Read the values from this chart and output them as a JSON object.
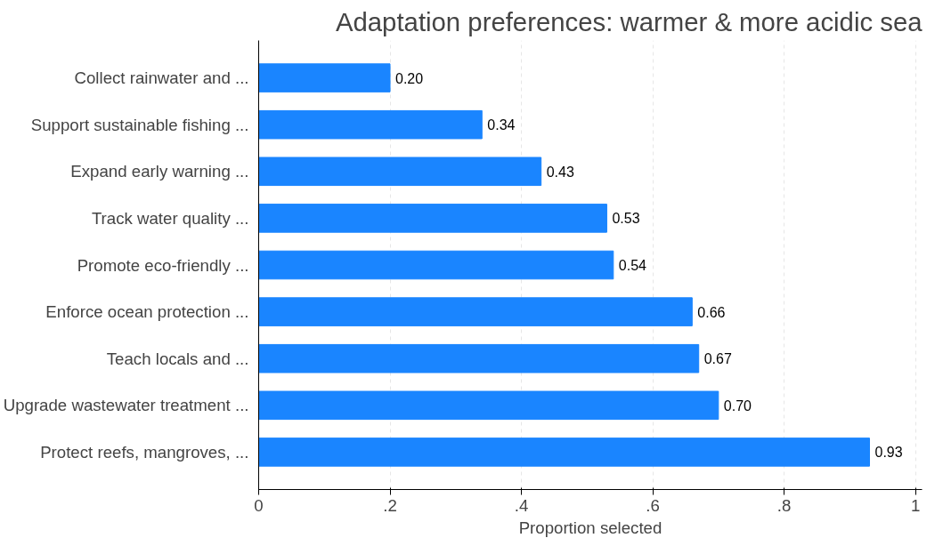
{
  "chart_data": {
    "type": "bar",
    "orientation": "horizontal",
    "title": "Adaptation preferences: warmer & more acidic sea",
    "xlabel": "Proportion selected",
    "categories": [
      "Collect rainwater and ...",
      "Support sustainable fishing ...",
      "Expand early warning ...",
      "Track water quality ...",
      "Promote eco-friendly ...",
      "Enforce ocean protection ...",
      "Teach locals and ...",
      "Upgrade wastewater treatment ...",
      "Protect reefs, mangroves, ..."
    ],
    "values": [
      0.2,
      0.34,
      0.43,
      0.53,
      0.54,
      0.66,
      0.67,
      0.7,
      0.93
    ],
    "value_labels": [
      "0.20",
      "0.34",
      "0.43",
      "0.53",
      "0.54",
      "0.66",
      "0.67",
      "0.70",
      "0.93"
    ],
    "color": "#1a85ff",
    "grid": "x",
    "xlim": [
      0,
      1
    ],
    "xticks": [
      {
        "value": 0,
        "label": "0"
      },
      {
        "value": 0.2,
        "label": ".2"
      },
      {
        "value": 0.4,
        "label": ".4"
      },
      {
        "value": 0.6,
        "label": ".6"
      },
      {
        "value": 0.8,
        "label": ".8"
      },
      {
        "value": 1,
        "label": "1"
      }
    ]
  }
}
